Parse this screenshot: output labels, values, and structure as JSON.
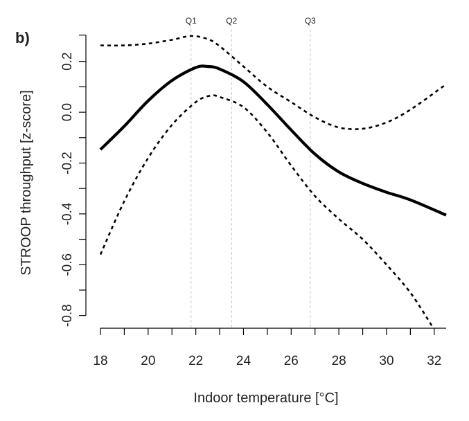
{
  "panel_label": "b)",
  "chart_data": {
    "type": "line",
    "xlabel": "Indoor temperature [°C]",
    "ylabel": "STROOP throughput [z-score]",
    "xlim": [
      18,
      32.5
    ],
    "ylim": [
      -0.85,
      0.3
    ],
    "x_ticks": [
      18,
      20,
      22,
      24,
      26,
      28,
      30,
      32
    ],
    "x_minor_ticks": [
      19,
      21,
      23,
      25,
      27,
      29,
      31
    ],
    "y_ticks": [
      -0.8,
      -0.6,
      -0.4,
      -0.2,
      0.0,
      0.2
    ],
    "y_minor_ticks": [
      -0.7,
      -0.5,
      -0.3,
      -0.1,
      0.1
    ],
    "quartiles": [
      {
        "label": "Q1",
        "x": 21.8
      },
      {
        "label": "Q2",
        "x": 23.5
      },
      {
        "label": "Q3",
        "x": 26.8
      }
    ],
    "grid": false,
    "legend": "none",
    "series": [
      {
        "style": "solid",
        "x": [
          18,
          19,
          20,
          21,
          22,
          22.5,
          23,
          24,
          25,
          26,
          27,
          28,
          29,
          30,
          31,
          32.5
        ],
        "y": [
          -0.147,
          -0.055,
          0.045,
          0.125,
          0.176,
          0.18,
          0.17,
          0.12,
          0.03,
          -0.07,
          -0.165,
          -0.235,
          -0.28,
          -0.315,
          -0.345,
          -0.405
        ]
      },
      {
        "style": "dashed",
        "x": [
          18,
          19,
          20,
          21,
          21.8,
          22.5,
          23,
          24,
          25,
          26,
          27,
          28,
          29,
          30,
          31,
          32.5
        ],
        "y": [
          0.263,
          0.263,
          0.27,
          0.285,
          0.3,
          0.288,
          0.26,
          0.18,
          0.1,
          0.04,
          -0.02,
          -0.06,
          -0.065,
          -0.04,
          0.01,
          0.11
        ]
      },
      {
        "style": "dashed",
        "x": [
          18,
          19,
          20,
          21,
          22,
          22.6,
          23,
          24,
          25,
          26,
          27,
          28,
          29,
          30,
          31,
          31.9
        ],
        "y": [
          -0.56,
          -0.35,
          -0.18,
          -0.05,
          0.04,
          0.065,
          0.06,
          0.02,
          -0.08,
          -0.21,
          -0.33,
          -0.42,
          -0.5,
          -0.6,
          -0.71,
          -0.84
        ]
      }
    ]
  }
}
